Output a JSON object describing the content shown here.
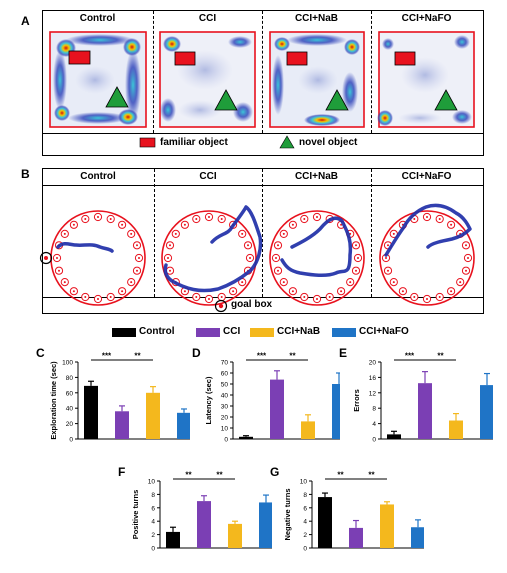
{
  "panels": {
    "A": {
      "letter": "A",
      "columns": [
        "Control",
        "CCI",
        "CCI+NaB",
        "CCI+NaFO"
      ],
      "legend": [
        {
          "label": "familiar object",
          "color": "#e8121e",
          "shape": "rect"
        },
        {
          "label": "novel object",
          "color": "#1f9d3a",
          "shape": "triangle"
        }
      ]
    },
    "B": {
      "letter": "B",
      "columns": [
        "Control",
        "CCI",
        "CCI+NaB",
        "CCI+NaFO"
      ],
      "legend_label": "goal box",
      "maze_color": "#e8121e",
      "track_color": "#1f2fa8"
    }
  },
  "bar_legend": [
    {
      "label": "Control",
      "color": "#000000"
    },
    {
      "label": "CCI",
      "color": "#7b3fb4"
    },
    {
      "label": "CCI+NaB",
      "color": "#f4b81d"
    },
    {
      "label": "CCI+NaFO",
      "color": "#1f74c6"
    }
  ],
  "chart_data": [
    {
      "panel": "C",
      "type": "bar",
      "categories": [
        "Control",
        "CCI",
        "CCI+NaB",
        "CCI+NaFO"
      ],
      "values": [
        69,
        36,
        60,
        34
      ],
      "errors": [
        6,
        7,
        8,
        5
      ],
      "ylabel": "Exploration time (sec)",
      "ylim": [
        0,
        100
      ],
      "yticks": [
        0,
        20,
        40,
        60,
        80,
        100
      ],
      "significance": [
        {
          "from": 0,
          "to": 1,
          "label": "***"
        },
        {
          "from": 1,
          "to": 2,
          "label": "**"
        }
      ]
    },
    {
      "panel": "D",
      "type": "bar",
      "categories": [
        "Control",
        "CCI",
        "CCI+NaB",
        "CCI+NaFO"
      ],
      "values": [
        2,
        54,
        16,
        50
      ],
      "errors": [
        1,
        8,
        6,
        10
      ],
      "ylabel": "Latency (sec)",
      "ylim": [
        0,
        70
      ],
      "yticks": [
        0,
        10,
        20,
        30,
        40,
        50,
        60,
        70
      ],
      "significance": [
        {
          "from": 0,
          "to": 1,
          "label": "***"
        },
        {
          "from": 1,
          "to": 2,
          "label": "**"
        }
      ]
    },
    {
      "panel": "E",
      "type": "bar",
      "categories": [
        "Control",
        "CCI",
        "CCI+NaB",
        "CCI+NaFO"
      ],
      "values": [
        1.2,
        14.5,
        4.8,
        14
      ],
      "errors": [
        0.8,
        3,
        1.8,
        3
      ],
      "ylabel": "Errors",
      "ylim": [
        0,
        20
      ],
      "yticks": [
        0,
        4,
        8,
        12,
        16,
        20
      ],
      "significance": [
        {
          "from": 0,
          "to": 1,
          "label": "***"
        },
        {
          "from": 1,
          "to": 2,
          "label": "**"
        }
      ]
    },
    {
      "panel": "F",
      "type": "bar",
      "categories": [
        "Control",
        "CCI",
        "CCI+NaB",
        "CCI+NaFO"
      ],
      "values": [
        2.4,
        7,
        3.6,
        6.8
      ],
      "errors": [
        0.7,
        0.8,
        0.4,
        1.1
      ],
      "ylabel": "Positive turns",
      "ylim": [
        0,
        10
      ],
      "yticks": [
        0,
        2,
        4,
        6,
        8,
        10
      ],
      "significance": [
        {
          "from": 0,
          "to": 1,
          "label": "**"
        },
        {
          "from": 1,
          "to": 2,
          "label": "**"
        }
      ]
    },
    {
      "panel": "G",
      "type": "bar",
      "categories": [
        "Control",
        "CCI",
        "CCI+NaB",
        "CCI+NaFO"
      ],
      "values": [
        7.6,
        3,
        6.5,
        3.1
      ],
      "errors": [
        0.6,
        1.1,
        0.4,
        1.1
      ],
      "ylabel": "Negative turns",
      "ylim": [
        0,
        10
      ],
      "yticks": [
        0,
        2,
        4,
        6,
        8,
        10
      ],
      "significance": [
        {
          "from": 0,
          "to": 1,
          "label": "**"
        },
        {
          "from": 1,
          "to": 2,
          "label": "**"
        }
      ]
    }
  ]
}
